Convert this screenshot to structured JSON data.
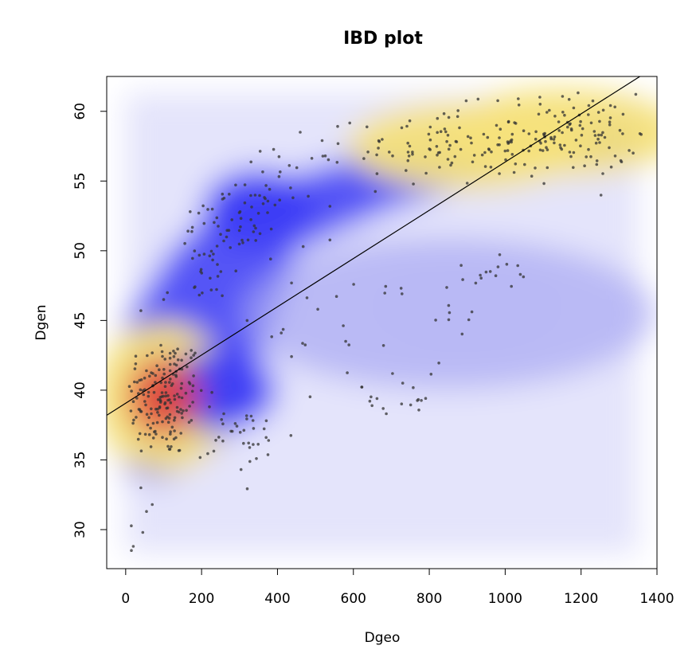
{
  "chart_data": {
    "type": "scatter",
    "title": "IBD plot",
    "xlabel": "Dgeo",
    "ylabel": "Dgen",
    "xlim": [
      -50,
      1400
    ],
    "ylim": [
      27.2,
      62.5
    ],
    "xticks": [
      0,
      200,
      400,
      600,
      800,
      1000,
      1200,
      1400
    ],
    "yticks": [
      30,
      35,
      40,
      45,
      50,
      55,
      60
    ],
    "grid": false,
    "legend": "none",
    "density_overlay": true,
    "colors": {
      "density_low": "#ffffff",
      "density_mid": "#3b3bf5",
      "density_high": "#f5e27a",
      "density_peak": "#e0413a",
      "points": "#333333",
      "regression_line": "#000000"
    },
    "regression_line": {
      "x": [
        -50,
        1355
      ],
      "y": [
        38.2,
        62.5
      ]
    },
    "density_clusters": [
      {
        "x": 100,
        "y": 39.5,
        "level": "peak"
      },
      {
        "x": 900,
        "y": 57.5,
        "level": "high"
      },
      {
        "x": 1150,
        "y": 58.5,
        "level": "high"
      },
      {
        "x": 350,
        "y": 53,
        "level": "mid"
      },
      {
        "x": 250,
        "y": 40,
        "level": "mid"
      },
      {
        "x": 900,
        "y": 46,
        "level": "low"
      }
    ],
    "point_clusters": [
      {
        "cx": 100,
        "cy": 39.5,
        "sx": 55,
        "sy": 2.2,
        "n": 180
      },
      {
        "cx": 830,
        "cy": 57.5,
        "sx": 110,
        "sy": 1.4,
        "n": 90
      },
      {
        "cx": 1170,
        "cy": 58.3,
        "sx": 90,
        "sy": 1.5,
        "n": 120
      },
      {
        "cx": 300,
        "cy": 52,
        "sx": 60,
        "sy": 1.5,
        "n": 45
      },
      {
        "cx": 430,
        "cy": 55.5,
        "sx": 60,
        "sy": 1.1,
        "n": 25
      },
      {
        "cx": 220,
        "cy": 49,
        "sx": 40,
        "sy": 2.0,
        "n": 30
      },
      {
        "cx": 320,
        "cy": 36.5,
        "sx": 60,
        "sy": 1.3,
        "n": 35
      },
      {
        "cx": 600,
        "cy": 44.5,
        "sx": 120,
        "sy": 3.0,
        "n": 30
      },
      {
        "cx": 950,
        "cy": 48.5,
        "sx": 50,
        "sy": 0.6,
        "n": 14
      },
      {
        "cx": 720,
        "cy": 39.3,
        "sx": 50,
        "sy": 0.6,
        "n": 14
      },
      {
        "cx": 880,
        "cy": 45,
        "sx": 40,
        "sy": 0.5,
        "n": 6
      }
    ],
    "extra_points": [
      {
        "x": 15,
        "y": 28.5
      },
      {
        "x": 20,
        "y": 28.8
      },
      {
        "x": 45,
        "y": 29.8
      },
      {
        "x": 55,
        "y": 31.3
      },
      {
        "x": 70,
        "y": 31.8
      },
      {
        "x": 40,
        "y": 33.0
      },
      {
        "x": 40,
        "y": 45.7
      },
      {
        "x": 100,
        "y": 46.5
      },
      {
        "x": 110,
        "y": 47.0
      },
      {
        "x": 170,
        "y": 52.8
      },
      {
        "x": 460,
        "y": 58.5
      },
      {
        "x": 1355,
        "y": 58.4
      },
      {
        "x": 320,
        "y": 45.0
      },
      {
        "x": 410,
        "y": 44.1
      },
      {
        "x": 1040,
        "y": 48.3
      }
    ]
  }
}
